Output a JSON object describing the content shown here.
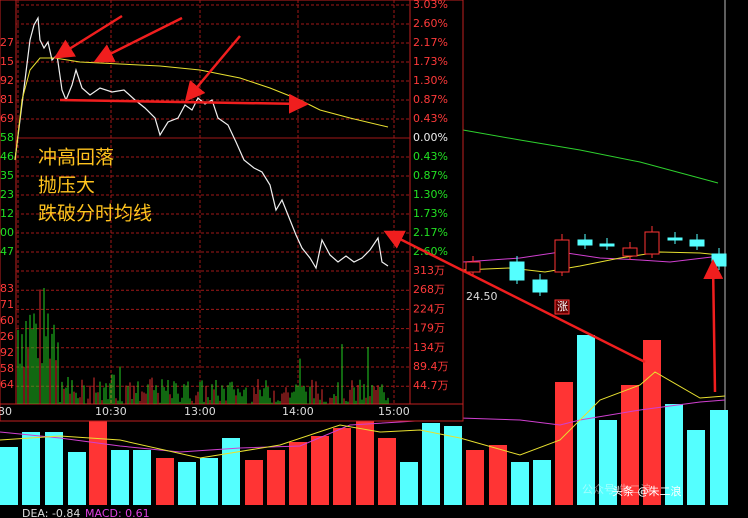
{
  "price_axis_right": [
    "3.03%",
    "2.60%",
    "2.17%",
    "1.73%",
    "1.30%",
    "0.87%",
    "0.43%",
    "0.00%",
    "0.43%",
    "0.87%",
    "1.30%",
    "1.73%",
    "2.17%",
    "2.60%"
  ],
  "price_axis_left": [
    "27",
    "15",
    "92",
    "81",
    "69",
    "58",
    "46",
    "35",
    "23",
    "12",
    "00",
    "47"
  ],
  "volume_axis_right": [
    "313万",
    "268万",
    "224万",
    "179万",
    "134万",
    "89.4万",
    "44.7万"
  ],
  "volume_axis_left": [
    "83",
    "71",
    "60",
    "26",
    "92",
    "58",
    "64"
  ],
  "time_axis": [
    "30",
    "10:30",
    "13:00",
    "14:00",
    "15:00"
  ],
  "annotation": [
    "冲高回落",
    "抛压大",
    "跌破分时均线"
  ],
  "candle_price_label": "24.50",
  "limit_tag": "涨",
  "indicator": {
    "dea": "DEA: -0.84",
    "macd": "MACD: 0.61"
  },
  "watermark": {
    "wechat": "公众号·朱二浪",
    "toutiao": "头条 @朱二浪"
  }
}
